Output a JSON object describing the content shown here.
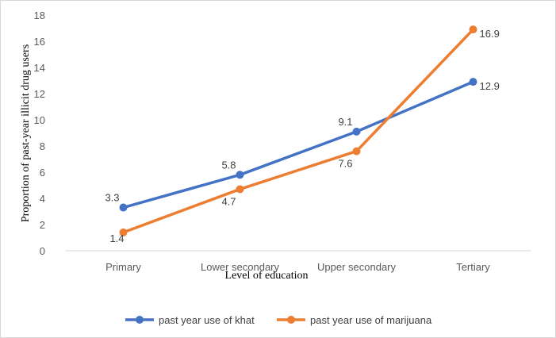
{
  "chart_data": {
    "type": "line",
    "categories": [
      "Primary",
      "Lower secondary",
      "Upper secondary",
      "Tertiary"
    ],
    "series": [
      {
        "name": "past year use of khat",
        "values": [
          3.3,
          5.8,
          9.1,
          12.9
        ],
        "color": "#4472c4"
      },
      {
        "name": "past year use of marijuana",
        "values": [
          1.4,
          4.7,
          7.6,
          16.9
        ],
        "color": "#ed7d31"
      }
    ],
    "xlabel": "Level of education",
    "ylabel": "Proportion of past-year illicit drug users",
    "ylim": [
      0,
      18
    ],
    "yticks": [
      0,
      2,
      4,
      6,
      8,
      10,
      12,
      14,
      16,
      18
    ],
    "grid": false,
    "legend": "bottom"
  }
}
